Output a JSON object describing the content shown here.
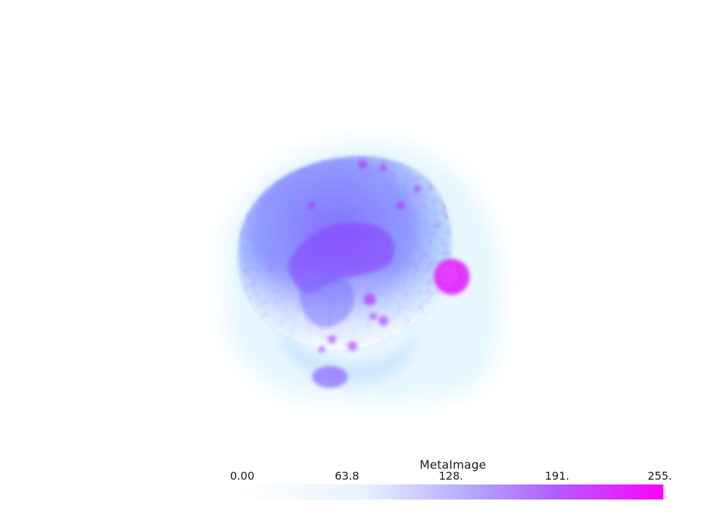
{
  "scalar_bar": {
    "title": "MetaImage",
    "ticks": [
      "0.00",
      "63.8",
      "128.",
      "191.",
      "255."
    ],
    "range": [
      0,
      255
    ],
    "colors": {
      "low": "#ffffff",
      "low_mid": "#e6f3ff",
      "mid": "#b3a8ff",
      "high_mid": "#b25cff",
      "high": "#ff00ff"
    }
  },
  "render": {
    "background": "#ffffff",
    "object": "volume-rendered head"
  }
}
